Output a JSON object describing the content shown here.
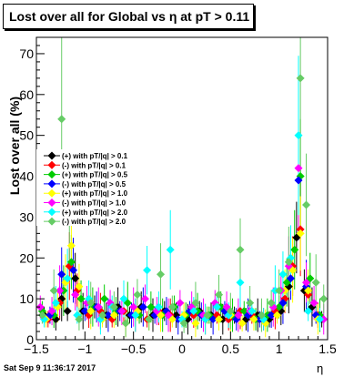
{
  "chart_data": {
    "type": "scatter",
    "title": "Lost over all for Global vs    η at pT > 0.11",
    "xlabel": "η",
    "ylabel": "Lost over all (%)",
    "xlim": [
      -1.5,
      1.5
    ],
    "ylim": [
      0,
      74
    ],
    "x_ticks": [
      "−1.5",
      "−1",
      "−0.5",
      "0",
      "0.5",
      "1",
      "1.5"
    ],
    "y_ticks": [
      "0",
      "10",
      "20",
      "30",
      "40",
      "50",
      "60",
      "70"
    ],
    "legend_position": "middle-left",
    "series": [
      {
        "name": "(+) with pT/|q| > 0.1",
        "color": "#000000",
        "marker": "diamond",
        "points": [
          [
            -1.42,
            6
          ],
          [
            -1.3,
            5
          ],
          [
            -1.24,
            10
          ],
          [
            -1.18,
            7
          ],
          [
            -1.1,
            15
          ],
          [
            -1.02,
            7
          ],
          [
            -0.9,
            8
          ],
          [
            -0.78,
            6
          ],
          [
            -0.66,
            8
          ],
          [
            -0.54,
            6
          ],
          [
            -0.42,
            8
          ],
          [
            -0.3,
            6
          ],
          [
            -0.18,
            7
          ],
          [
            -0.06,
            6
          ],
          [
            0.06,
            5
          ],
          [
            0.18,
            7
          ],
          [
            0.3,
            6
          ],
          [
            0.42,
            5
          ],
          [
            0.54,
            6
          ],
          [
            0.66,
            5
          ],
          [
            0.78,
            6
          ],
          [
            0.9,
            5
          ],
          [
            1.02,
            7
          ],
          [
            1.1,
            13
          ],
          [
            1.18,
            25
          ],
          [
            1.26,
            12
          ],
          [
            1.34,
            8
          ],
          [
            1.44,
            5
          ]
        ]
      },
      {
        "name": "(-) with pT/|q| > 0.1",
        "color": "#ff0000",
        "marker": "diamond",
        "points": [
          [
            -1.38,
            5
          ],
          [
            -1.26,
            9
          ],
          [
            -1.16,
            18
          ],
          [
            -1.08,
            12
          ],
          [
            -0.96,
            6
          ],
          [
            -0.84,
            7
          ],
          [
            -0.72,
            5
          ],
          [
            -0.6,
            7
          ],
          [
            -0.48,
            6
          ],
          [
            -0.36,
            5
          ],
          [
            -0.24,
            7
          ],
          [
            -0.12,
            6
          ],
          [
            0.0,
            5
          ],
          [
            0.12,
            6
          ],
          [
            0.24,
            5
          ],
          [
            0.36,
            6
          ],
          [
            0.48,
            5
          ],
          [
            0.6,
            7
          ],
          [
            0.72,
            6
          ],
          [
            0.84,
            5
          ],
          [
            0.96,
            7
          ],
          [
            1.06,
            10
          ],
          [
            1.14,
            18
          ],
          [
            1.22,
            27
          ],
          [
            1.3,
            11
          ],
          [
            1.4,
            6
          ]
        ]
      },
      {
        "name": "(+) with pT/|q| > 0.5",
        "color": "#00cc00",
        "marker": "diamond",
        "points": [
          [
            -1.44,
            7
          ],
          [
            -1.32,
            6
          ],
          [
            -1.22,
            12
          ],
          [
            -1.14,
            19
          ],
          [
            -1.04,
            10
          ],
          [
            -0.92,
            8
          ],
          [
            -0.8,
            10
          ],
          [
            -0.68,
            7
          ],
          [
            -0.56,
            9
          ],
          [
            -0.44,
            6
          ],
          [
            -0.32,
            8
          ],
          [
            -0.2,
            6
          ],
          [
            -0.08,
            8
          ],
          [
            0.04,
            6
          ],
          [
            0.16,
            7
          ],
          [
            0.28,
            6
          ],
          [
            0.4,
            8
          ],
          [
            0.52,
            6
          ],
          [
            0.64,
            7
          ],
          [
            0.76,
            5
          ],
          [
            0.88,
            6
          ],
          [
            1.0,
            8
          ],
          [
            1.08,
            14
          ],
          [
            1.16,
            22
          ],
          [
            1.22,
            40
          ],
          [
            1.32,
            15
          ],
          [
            1.42,
            6
          ]
        ]
      },
      {
        "name": "(-) with pT/|q| > 0.5",
        "color": "#0000ff",
        "marker": "diamond",
        "points": [
          [
            -1.36,
            6
          ],
          [
            -1.24,
            16
          ],
          [
            -1.12,
            17
          ],
          [
            -1.0,
            7
          ],
          [
            -0.88,
            8
          ],
          [
            -0.76,
            6
          ],
          [
            -0.64,
            7
          ],
          [
            -0.52,
            6
          ],
          [
            -0.4,
            8
          ],
          [
            -0.28,
            6
          ],
          [
            -0.16,
            7
          ],
          [
            -0.04,
            5
          ],
          [
            0.08,
            7
          ],
          [
            0.2,
            6
          ],
          [
            0.32,
            5
          ],
          [
            0.44,
            7
          ],
          [
            0.56,
            5
          ],
          [
            0.68,
            6
          ],
          [
            0.8,
            5
          ],
          [
            0.92,
            6
          ],
          [
            1.04,
            9
          ],
          [
            1.12,
            15
          ],
          [
            1.2,
            39
          ],
          [
            1.28,
            13
          ],
          [
            1.38,
            6
          ]
        ]
      },
      {
        "name": "(+) with pT/|q| > 1.0",
        "color": "#ffff00",
        "marker": "diamond",
        "points": [
          [
            -1.4,
            5
          ],
          [
            -1.28,
            8
          ],
          [
            -1.2,
            14
          ],
          [
            -1.14,
            23
          ],
          [
            -1.06,
            13
          ],
          [
            -0.94,
            7
          ],
          [
            -0.82,
            5
          ],
          [
            -0.7,
            6
          ],
          [
            -0.58,
            4
          ],
          [
            -0.46,
            7
          ],
          [
            -0.34,
            5
          ],
          [
            -0.22,
            6
          ],
          [
            -0.1,
            5
          ],
          [
            0.02,
            6
          ],
          [
            0.14,
            4
          ],
          [
            0.26,
            6
          ],
          [
            0.38,
            5
          ],
          [
            0.5,
            6
          ],
          [
            0.62,
            4
          ],
          [
            0.74,
            5
          ],
          [
            0.86,
            4
          ],
          [
            0.98,
            6
          ],
          [
            1.06,
            12
          ],
          [
            1.14,
            17
          ],
          [
            1.22,
            26
          ],
          [
            1.3,
            12
          ],
          [
            1.4,
            5
          ]
        ]
      },
      {
        "name": "(-) with pT/|q| > 1.0",
        "color": "#ff00ff",
        "marker": "diamond",
        "points": [
          [
            -1.46,
            8
          ],
          [
            -1.34,
            7
          ],
          [
            -1.26,
            12
          ],
          [
            -1.1,
            11
          ],
          [
            -0.98,
            9
          ],
          [
            -0.86,
            8
          ],
          [
            -0.74,
            9
          ],
          [
            -0.62,
            7
          ],
          [
            -0.5,
            8
          ],
          [
            -0.38,
            10
          ],
          [
            -0.26,
            7
          ],
          [
            -0.14,
            6
          ],
          [
            -0.02,
            9
          ],
          [
            0.1,
            8
          ],
          [
            0.22,
            6
          ],
          [
            0.34,
            9
          ],
          [
            0.46,
            8
          ],
          [
            0.58,
            6
          ],
          [
            0.7,
            7
          ],
          [
            0.82,
            6
          ],
          [
            0.94,
            8
          ],
          [
            1.02,
            12
          ],
          [
            1.1,
            18
          ],
          [
            1.2,
            42
          ],
          [
            1.28,
            14
          ],
          [
            1.36,
            9
          ],
          [
            1.46,
            5
          ]
        ]
      },
      {
        "name": "(+) with pT/|q| > 2.0",
        "color": "#00ffff",
        "marker": "diamond",
        "points": [
          [
            -1.42,
            5
          ],
          [
            -1.3,
            9
          ],
          [
            -1.18,
            15
          ],
          [
            -1.08,
            6
          ],
          [
            -0.96,
            10
          ],
          [
            -0.84,
            5
          ],
          [
            -0.72,
            8
          ],
          [
            -0.6,
            10
          ],
          [
            -0.48,
            6
          ],
          [
            -0.36,
            17
          ],
          [
            -0.24,
            8
          ],
          [
            -0.12,
            22
          ],
          [
            0.0,
            5
          ],
          [
            0.12,
            7
          ],
          [
            0.24,
            5
          ],
          [
            0.36,
            8
          ],
          [
            0.48,
            6
          ],
          [
            0.6,
            14
          ],
          [
            0.72,
            7
          ],
          [
            0.84,
            5
          ],
          [
            0.96,
            12
          ],
          [
            1.04,
            16
          ],
          [
            1.12,
            20
          ],
          [
            1.2,
            50
          ],
          [
            1.3,
            7
          ],
          [
            1.42,
            5
          ]
        ]
      },
      {
        "name": "(-) with pT/|q| > 2.0",
        "color": "#66cc66",
        "marker": "diamond",
        "points": [
          [
            -1.44,
            6
          ],
          [
            -1.32,
            12
          ],
          [
            -1.24,
            54
          ],
          [
            -1.16,
            30
          ],
          [
            -1.06,
            5
          ],
          [
            -0.94,
            9
          ],
          [
            -0.82,
            6
          ],
          [
            -0.7,
            8
          ],
          [
            -0.58,
            4
          ],
          [
            -0.46,
            11
          ],
          [
            -0.34,
            5
          ],
          [
            -0.22,
            16
          ],
          [
            -0.1,
            8
          ],
          [
            0.02,
            4
          ],
          [
            0.14,
            9
          ],
          [
            0.26,
            6
          ],
          [
            0.38,
            11
          ],
          [
            0.5,
            7
          ],
          [
            0.6,
            22
          ],
          [
            0.7,
            9
          ],
          [
            0.82,
            6
          ],
          [
            0.92,
            9
          ],
          [
            1.0,
            12
          ],
          [
            1.1,
            19
          ],
          [
            1.22,
            64
          ],
          [
            1.28,
            33
          ],
          [
            1.38,
            14
          ],
          [
            1.46,
            10
          ]
        ]
      }
    ]
  },
  "footer": {
    "date": "Sat Sep  9 11:36:17 2017"
  }
}
